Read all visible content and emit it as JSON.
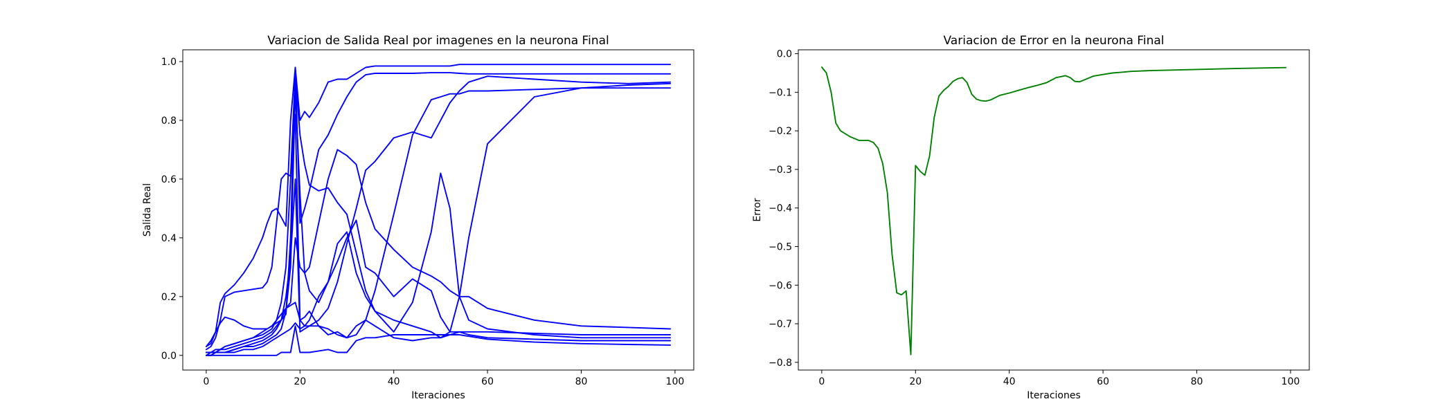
{
  "chart_data": [
    {
      "type": "line",
      "title": "Variacion de Salida Real por imagenes en la neurona Final",
      "xlabel": "Iteraciones",
      "ylabel": "Salida Real",
      "xlim": [
        -5,
        104
      ],
      "ylim": [
        -0.05,
        1.04
      ],
      "xticks": [
        0,
        20,
        40,
        60,
        80,
        100
      ],
      "yticks": [
        0.0,
        0.2,
        0.4,
        0.6,
        0.8,
        1.0
      ],
      "ytick_labels": [
        "0.0",
        "0.2",
        "0.4",
        "0.6",
        "0.8",
        "1.0"
      ],
      "grid": false,
      "legend": "none",
      "color": "#0000ff",
      "series": [
        {
          "x": [
            0,
            1,
            2,
            3,
            4,
            6,
            8,
            10,
            12,
            13,
            14,
            15,
            16,
            17,
            18,
            19,
            20,
            21,
            22,
            24,
            26,
            28,
            30,
            32,
            34,
            36,
            40,
            44,
            48,
            50,
            52,
            54,
            56,
            60,
            70,
            80,
            90,
            99
          ],
          "y": [
            0.03,
            0.04,
            0.08,
            0.18,
            0.21,
            0.24,
            0.28,
            0.33,
            0.4,
            0.45,
            0.49,
            0.5,
            0.47,
            0.44,
            0.8,
            0.98,
            0.8,
            0.83,
            0.81,
            0.86,
            0.93,
            0.94,
            0.94,
            0.96,
            0.98,
            0.985,
            0.985,
            0.985,
            0.985,
            0.985,
            0.985,
            0.99,
            0.99,
            0.99,
            0.99,
            0.99,
            0.99,
            0.99
          ]
        },
        {
          "x": [
            0,
            1,
            2,
            3,
            4,
            6,
            8,
            10,
            12,
            13,
            14,
            15,
            16,
            17,
            18,
            19,
            20,
            21,
            22,
            24,
            26,
            28,
            30,
            32,
            34,
            36,
            40,
            44,
            48,
            50,
            52,
            54,
            56,
            60,
            70,
            80,
            90,
            99
          ],
          "y": [
            0.03,
            0.05,
            0.08,
            0.11,
            0.13,
            0.12,
            0.1,
            0.09,
            0.09,
            0.09,
            0.1,
            0.11,
            0.12,
            0.14,
            0.4,
            0.98,
            0.45,
            0.5,
            0.56,
            0.7,
            0.75,
            0.82,
            0.88,
            0.93,
            0.955,
            0.96,
            0.96,
            0.96,
            0.962,
            0.962,
            0.962,
            0.96,
            0.958,
            0.958,
            0.958,
            0.958,
            0.958,
            0.958
          ]
        },
        {
          "x": [
            0,
            1,
            2,
            3,
            4,
            6,
            8,
            10,
            12,
            13,
            14,
            15,
            16,
            17,
            18,
            19,
            20,
            21,
            22,
            24,
            26,
            28,
            30,
            32,
            34,
            36,
            40,
            44,
            48,
            50,
            52,
            54,
            56,
            60,
            70,
            80,
            90,
            99
          ],
          "y": [
            0.02,
            0.03,
            0.06,
            0.12,
            0.2,
            0.215,
            0.22,
            0.225,
            0.23,
            0.25,
            0.3,
            0.45,
            0.6,
            0.62,
            0.61,
            0.96,
            0.75,
            0.65,
            0.58,
            0.56,
            0.57,
            0.52,
            0.48,
            0.35,
            0.22,
            0.15,
            0.12,
            0.1,
            0.08,
            0.06,
            0.07,
            0.08,
            0.07,
            0.06,
            0.055,
            0.05,
            0.05,
            0.05
          ]
        },
        {
          "x": [
            0,
            1,
            2,
            3,
            4,
            6,
            8,
            10,
            12,
            13,
            14,
            15,
            16,
            17,
            18,
            19,
            20,
            21,
            22,
            24,
            26,
            28,
            30,
            32,
            34,
            36,
            40,
            44,
            48,
            50,
            52,
            54,
            56,
            60,
            70,
            80,
            90,
            99
          ],
          "y": [
            0.01,
            0.01,
            0.02,
            0.02,
            0.03,
            0.04,
            0.05,
            0.06,
            0.08,
            0.09,
            0.1,
            0.12,
            0.14,
            0.16,
            0.18,
            0.4,
            0.3,
            0.28,
            0.3,
            0.45,
            0.6,
            0.7,
            0.68,
            0.65,
            0.52,
            0.43,
            0.36,
            0.3,
            0.27,
            0.25,
            0.22,
            0.2,
            0.2,
            0.16,
            0.12,
            0.1,
            0.095,
            0.09
          ]
        },
        {
          "x": [
            0,
            1,
            2,
            3,
            4,
            6,
            8,
            10,
            12,
            13,
            14,
            15,
            16,
            17,
            18,
            19,
            20,
            21,
            22,
            24,
            26,
            28,
            30,
            32,
            34,
            36,
            40,
            44,
            48,
            50,
            52,
            54,
            56,
            60,
            70,
            80,
            90,
            99
          ],
          "y": [
            0.0,
            0.01,
            0.01,
            0.02,
            0.03,
            0.04,
            0.05,
            0.06,
            0.07,
            0.08,
            0.09,
            0.12,
            0.18,
            0.3,
            0.6,
            0.82,
            0.12,
            0.1,
            0.1,
            0.12,
            0.16,
            0.25,
            0.38,
            0.5,
            0.63,
            0.66,
            0.74,
            0.76,
            0.74,
            0.8,
            0.86,
            0.9,
            0.93,
            0.95,
            0.94,
            0.93,
            0.925,
            0.93
          ]
        },
        {
          "x": [
            0,
            1,
            2,
            3,
            4,
            6,
            8,
            10,
            12,
            13,
            14,
            15,
            16,
            17,
            18,
            19,
            20,
            21,
            22,
            24,
            26,
            28,
            30,
            32,
            34,
            36,
            40,
            44,
            48,
            50,
            52,
            54,
            56,
            60,
            70,
            80,
            90,
            99
          ],
          "y": [
            0.0,
            0.0,
            0.01,
            0.01,
            0.01,
            0.02,
            0.03,
            0.04,
            0.05,
            0.06,
            0.07,
            0.09,
            0.12,
            0.2,
            0.33,
            0.6,
            0.08,
            0.09,
            0.1,
            0.1,
            0.09,
            0.07,
            0.06,
            0.07,
            0.12,
            0.22,
            0.48,
            0.75,
            0.87,
            0.88,
            0.89,
            0.89,
            0.9,
            0.9,
            0.905,
            0.91,
            0.91,
            0.91
          ]
        },
        {
          "x": [
            0,
            1,
            2,
            3,
            4,
            6,
            8,
            10,
            12,
            13,
            14,
            15,
            16,
            17,
            18,
            19,
            20,
            21,
            22,
            24,
            26,
            28,
            30,
            32,
            34,
            36,
            40,
            44,
            48,
            50,
            52,
            54,
            56,
            60,
            70,
            80,
            90,
            99
          ],
          "y": [
            0.01,
            0.01,
            0.01,
            0.02,
            0.02,
            0.03,
            0.04,
            0.05,
            0.06,
            0.07,
            0.08,
            0.1,
            0.12,
            0.16,
            0.17,
            0.18,
            0.12,
            0.13,
            0.15,
            0.1,
            0.07,
            0.08,
            0.06,
            0.1,
            0.12,
            0.1,
            0.06,
            0.05,
            0.06,
            0.06,
            0.08,
            0.2,
            0.4,
            0.72,
            0.88,
            0.91,
            0.92,
            0.925
          ]
        },
        {
          "x": [
            0,
            1,
            2,
            3,
            4,
            6,
            8,
            10,
            12,
            13,
            14,
            15,
            16,
            17,
            18,
            19,
            20,
            21,
            22,
            24,
            26,
            28,
            30,
            32,
            34,
            36,
            40,
            44,
            48,
            50,
            52,
            54,
            56,
            60,
            70,
            80,
            90,
            99
          ],
          "y": [
            0.0,
            0.0,
            0.01,
            0.01,
            0.01,
            0.02,
            0.03,
            0.03,
            0.04,
            0.05,
            0.06,
            0.07,
            0.09,
            0.15,
            0.3,
            0.9,
            0.55,
            0.28,
            0.22,
            0.18,
            0.25,
            0.38,
            0.42,
            0.28,
            0.2,
            0.15,
            0.08,
            0.18,
            0.42,
            0.62,
            0.5,
            0.2,
            0.12,
            0.09,
            0.07,
            0.06,
            0.06,
            0.06
          ]
        },
        {
          "x": [
            0,
            1,
            2,
            3,
            4,
            6,
            8,
            10,
            12,
            13,
            14,
            15,
            16,
            17,
            18,
            19,
            20,
            21,
            22,
            24,
            26,
            28,
            30,
            32,
            34,
            36,
            40,
            44,
            48,
            50,
            52,
            54,
            56,
            60,
            70,
            80,
            90,
            99
          ],
          "y": [
            0.0,
            0.0,
            0.01,
            0.01,
            0.01,
            0.01,
            0.02,
            0.02,
            0.03,
            0.04,
            0.05,
            0.06,
            0.07,
            0.08,
            0.09,
            0.11,
            0.09,
            0.1,
            0.12,
            0.2,
            0.25,
            0.32,
            0.4,
            0.46,
            0.3,
            0.28,
            0.2,
            0.26,
            0.22,
            0.13,
            0.08,
            0.08,
            0.08,
            0.08,
            0.075,
            0.07,
            0.07,
            0.07
          ]
        },
        {
          "x": [
            0,
            1,
            2,
            3,
            4,
            6,
            8,
            10,
            12,
            13,
            14,
            15,
            16,
            17,
            18,
            19,
            20,
            21,
            22,
            24,
            26,
            28,
            30,
            32,
            34,
            36,
            40,
            44,
            48,
            50,
            52,
            54,
            56,
            60,
            70,
            80,
            90,
            99
          ],
          "y": [
            0.0,
            0.0,
            0.0,
            0.0,
            0.0,
            0.0,
            0.0,
            0.0,
            0.0,
            0.0,
            0.0,
            0.0,
            0.01,
            0.01,
            0.01,
            0.1,
            0.01,
            0.01,
            0.01,
            0.015,
            0.02,
            0.01,
            0.01,
            0.05,
            0.06,
            0.06,
            0.07,
            0.07,
            0.07,
            0.07,
            0.07,
            0.07,
            0.065,
            0.055,
            0.045,
            0.04,
            0.037,
            0.035
          ]
        }
      ]
    },
    {
      "type": "line",
      "title": "Variacion de Error en la neurona Final",
      "xlabel": "Iteraciones",
      "ylabel": "Error",
      "xlim": [
        -5,
        104
      ],
      "ylim": [
        -0.82,
        0.01
      ],
      "xticks": [
        0,
        20,
        40,
        60,
        80,
        100
      ],
      "yticks": [
        0.0,
        -0.1,
        -0.2,
        -0.3,
        -0.4,
        -0.5,
        -0.6,
        -0.7,
        -0.8
      ],
      "ytick_labels": [
        "0.0",
        "−0.1",
        "−0.2",
        "−0.3",
        "−0.4",
        "−0.5",
        "−0.6",
        "−0.7",
        "−0.8"
      ],
      "grid": false,
      "legend": "none",
      "color": "#008000",
      "series": [
        {
          "x": [
            0,
            1,
            2,
            3,
            4,
            6,
            8,
            9,
            10,
            11,
            12,
            13,
            14,
            15,
            16,
            17,
            18,
            19,
            20,
            21,
            22,
            23,
            24,
            25,
            26,
            27,
            28,
            29,
            30,
            31,
            32,
            33,
            34,
            35,
            36,
            38,
            40,
            42,
            44,
            46,
            48,
            50,
            52,
            53,
            54,
            55,
            56,
            58,
            60,
            62,
            64,
            66,
            70,
            80,
            90,
            99
          ],
          "y": [
            -0.035,
            -0.05,
            -0.1,
            -0.18,
            -0.2,
            -0.215,
            -0.225,
            -0.225,
            -0.225,
            -0.23,
            -0.245,
            -0.285,
            -0.36,
            -0.52,
            -0.62,
            -0.625,
            -0.615,
            -0.78,
            -0.29,
            -0.305,
            -0.315,
            -0.265,
            -0.165,
            -0.11,
            -0.095,
            -0.085,
            -0.072,
            -0.065,
            -0.062,
            -0.075,
            -0.105,
            -0.118,
            -0.122,
            -0.123,
            -0.12,
            -0.108,
            -0.102,
            -0.095,
            -0.088,
            -0.082,
            -0.075,
            -0.062,
            -0.057,
            -0.062,
            -0.072,
            -0.073,
            -0.068,
            -0.058,
            -0.054,
            -0.05,
            -0.048,
            -0.046,
            -0.044,
            -0.041,
            -0.038,
            -0.036
          ]
        }
      ]
    }
  ]
}
